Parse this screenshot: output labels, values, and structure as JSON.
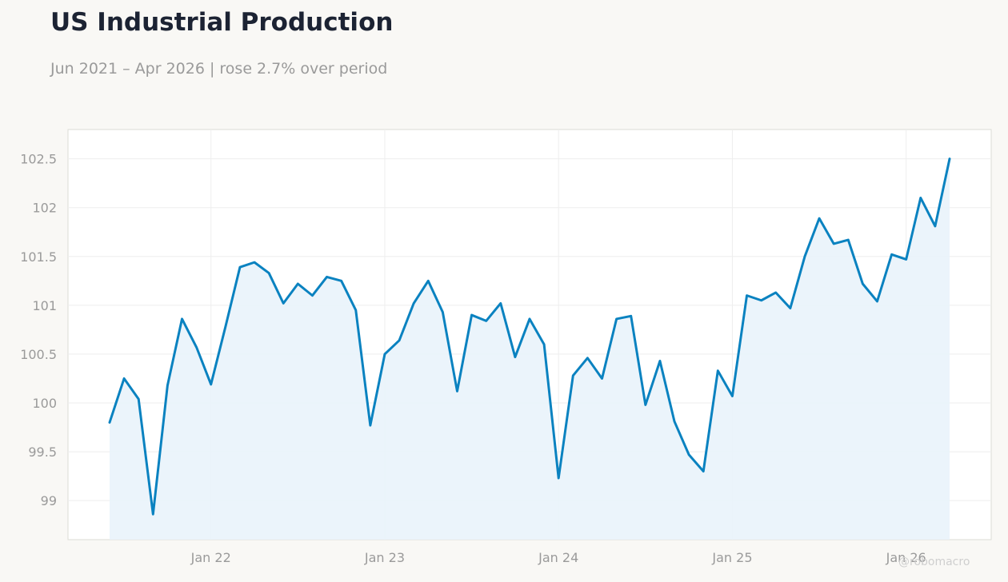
{
  "header": {
    "title": "US Industrial Production",
    "subtitle": "Jun 2021 – Apr 2026 | rose 2.7% over period"
  },
  "watermark": "@robomacro",
  "colors": {
    "line": "#0a82c0",
    "fill": "#e9f3fb",
    "background": "#f9f8f5",
    "plot_background": "#ffffff"
  },
  "chart_data": {
    "type": "area",
    "title": "US Industrial Production",
    "subtitle": "Jun 2021 – Apr 2026 | rose 2.7% over period",
    "xlabel": "",
    "ylabel": "",
    "x_start": "2021-06",
    "x_end": "2026-04",
    "ylim": [
      98.6,
      102.8
    ],
    "grid": true,
    "x_ticks": [
      {
        "date": "2022-01",
        "label": "Jan 22"
      },
      {
        "date": "2023-01",
        "label": "Jan 23"
      },
      {
        "date": "2024-01",
        "label": "Jan 24"
      },
      {
        "date": "2025-01",
        "label": "Jan 25"
      },
      {
        "date": "2026-01",
        "label": "Jan 26"
      }
    ],
    "y_ticks": [
      {
        "value": 99,
        "label": "99"
      },
      {
        "value": 99.5,
        "label": "99.5"
      },
      {
        "value": 100,
        "label": "100"
      },
      {
        "value": 100.5,
        "label": "100.5"
      },
      {
        "value": 101,
        "label": "101"
      },
      {
        "value": 101.5,
        "label": "101.5"
      },
      {
        "value": 102,
        "label": "102"
      },
      {
        "value": 102.5,
        "label": "102.5"
      }
    ],
    "series": [
      {
        "x": [
          "2021-06",
          "2021-07",
          "2021-08",
          "2021-09",
          "2021-10",
          "2021-11",
          "2021-12",
          "2022-01",
          "2022-02",
          "2022-03",
          "2022-04",
          "2022-05",
          "2022-06",
          "2022-07",
          "2022-08",
          "2022-09",
          "2022-10",
          "2022-11",
          "2022-12",
          "2023-01",
          "2023-02",
          "2023-03",
          "2023-04",
          "2023-05",
          "2023-06",
          "2023-07",
          "2023-08",
          "2023-09",
          "2023-10",
          "2023-11",
          "2023-12",
          "2024-01",
          "2024-02",
          "2024-03",
          "2024-04",
          "2024-05",
          "2024-06",
          "2024-07",
          "2024-08",
          "2024-09",
          "2024-10",
          "2024-11",
          "2024-12",
          "2025-01",
          "2025-02",
          "2025-03",
          "2025-04",
          "2025-05",
          "2025-06",
          "2025-07",
          "2025-08",
          "2025-09",
          "2025-10",
          "2025-11",
          "2025-12",
          "2026-01",
          "2026-02",
          "2026-03",
          "2026-04"
        ],
        "values": [
          99.8,
          100.25,
          100.04,
          98.86,
          100.18,
          100.86,
          100.57,
          100.19,
          100.78,
          101.39,
          101.44,
          101.33,
          101.02,
          101.22,
          101.1,
          101.29,
          101.25,
          100.95,
          99.77,
          100.5,
          100.64,
          101.02,
          101.25,
          100.93,
          100.12,
          100.9,
          100.84,
          101.02,
          100.47,
          100.86,
          100.6,
          99.23,
          100.28,
          100.46,
          100.25,
          100.86,
          100.89,
          99.98,
          100.43,
          99.81,
          99.47,
          99.3,
          100.33,
          100.07,
          101.1,
          101.05,
          101.13,
          100.97,
          101.5,
          101.89,
          101.63,
          101.67,
          101.22,
          101.04,
          101.52,
          101.47,
          102.1,
          101.81,
          102.5
        ]
      }
    ]
  }
}
